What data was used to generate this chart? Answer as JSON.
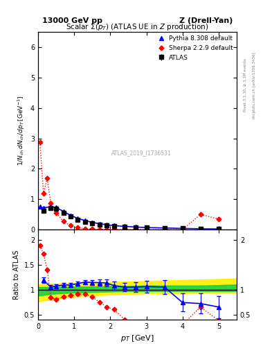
{
  "title_left": "13000 GeV pp",
  "title_right": "Z (Drell-Yan)",
  "main_title": "Scalar Σ(p_{T}) (ATLAS UE in Z production)",
  "ylabel_main": "1/N_{ch} dN_{ch}/dp_{T} [GeV⁻¹]",
  "ylabel_ratio": "Ratio to ATLAS",
  "xlabel": "p_{T} [GeV]",
  "right_label": "Rivet 3.1.10, ≥ 3.1M events",
  "right_label2": "mcplots.cern.ch [arXiv:1306.3436]",
  "watermark": "ATLAS_2019_I1736531",
  "atlas_x": [
    0.15,
    0.35,
    0.5,
    0.7,
    0.9,
    1.1,
    1.3,
    1.5,
    1.7,
    1.9,
    2.1,
    2.4,
    2.7,
    3.0,
    3.5,
    4.0,
    4.5,
    5.0
  ],
  "atlas_y": [
    0.62,
    0.72,
    0.68,
    0.55,
    0.43,
    0.33,
    0.26,
    0.21,
    0.17,
    0.14,
    0.12,
    0.1,
    0.08,
    0.07,
    0.055,
    0.04,
    0.03,
    0.025
  ],
  "atlas_yerr": [
    0.04,
    0.04,
    0.04,
    0.03,
    0.02,
    0.02,
    0.015,
    0.012,
    0.01,
    0.009,
    0.008,
    0.007,
    0.006,
    0.005,
    0.004,
    0.003,
    0.003,
    0.003
  ],
  "pythia_x": [
    0.05,
    0.15,
    0.35,
    0.5,
    0.7,
    0.9,
    1.1,
    1.3,
    1.5,
    1.7,
    1.9,
    2.1,
    2.4,
    2.7,
    3.0,
    3.5,
    4.0,
    4.5,
    5.0
  ],
  "pythia_y": [
    0.75,
    0.72,
    0.75,
    0.73,
    0.6,
    0.47,
    0.37,
    0.3,
    0.24,
    0.195,
    0.16,
    0.13,
    0.108,
    0.085,
    0.07,
    0.055,
    0.04,
    0.03,
    0.022
  ],
  "sherpa_x": [
    0.05,
    0.15,
    0.25,
    0.35,
    0.5,
    0.7,
    0.9,
    1.1,
    1.3,
    1.5,
    1.7,
    1.9,
    2.1,
    2.4,
    2.7,
    3.0,
    3.5,
    4.0,
    4.5,
    5.0
  ],
  "sherpa_y": [
    2.87,
    1.18,
    1.7,
    0.88,
    0.55,
    0.27,
    0.13,
    0.065,
    0.035,
    0.02,
    0.012,
    0.008,
    0.006,
    0.004,
    0.003,
    0.002,
    0.002,
    0.001,
    0.5,
    0.35
  ],
  "pythia_ratio_x": [
    0.15,
    0.35,
    0.5,
    0.7,
    0.9,
    1.1,
    1.3,
    1.5,
    1.7,
    1.9,
    2.1,
    2.4,
    2.7,
    3.0,
    3.5,
    4.0,
    4.5,
    5.0
  ],
  "pythia_ratio_y": [
    1.19,
    1.05,
    1.07,
    1.09,
    1.09,
    1.12,
    1.15,
    1.14,
    1.14,
    1.13,
    1.08,
    1.05,
    1.05,
    1.06,
    1.05,
    0.74,
    0.72,
    0.65
  ],
  "pythia_ratio_yerr": [
    0.06,
    0.04,
    0.04,
    0.04,
    0.04,
    0.04,
    0.04,
    0.05,
    0.06,
    0.07,
    0.08,
    0.09,
    0.1,
    0.12,
    0.14,
    0.18,
    0.2,
    0.22
  ],
  "sherpa_ratio_x": [
    0.05,
    0.15,
    0.25,
    0.35,
    0.5,
    0.7,
    0.9,
    1.1,
    1.3,
    1.5,
    1.7,
    1.9,
    2.1,
    2.4,
    2.7,
    3.0,
    3.5,
    4.0,
    4.5,
    5.0
  ],
  "sherpa_ratio_y": [
    1.88,
    1.72,
    1.4,
    0.84,
    0.8,
    0.85,
    0.88,
    0.91,
    0.91,
    0.85,
    0.75,
    0.65,
    0.6,
    0.4,
    0.3,
    0.3,
    0.3,
    0.3,
    0.65,
    0.38
  ],
  "green_band_x": [
    0.0,
    0.5,
    1.0,
    1.5,
    2.0,
    2.5,
    3.0,
    3.5,
    4.0,
    4.5,
    5.5
  ],
  "green_band_low": [
    0.88,
    0.92,
    0.94,
    0.95,
    0.96,
    0.97,
    0.97,
    0.97,
    0.97,
    0.97,
    0.97
  ],
  "green_band_high": [
    1.05,
    1.05,
    1.06,
    1.06,
    1.07,
    1.07,
    1.08,
    1.08,
    1.08,
    1.08,
    1.1
  ],
  "yellow_band_x": [
    0.0,
    0.5,
    1.0,
    1.5,
    2.0,
    2.5,
    3.0,
    3.5,
    4.0,
    4.5,
    5.5
  ],
  "yellow_band_low": [
    0.76,
    0.82,
    0.86,
    0.88,
    0.9,
    0.91,
    0.92,
    0.92,
    0.92,
    0.93,
    0.93
  ],
  "yellow_band_high": [
    1.1,
    1.12,
    1.13,
    1.14,
    1.15,
    1.16,
    1.17,
    1.18,
    1.19,
    1.2,
    1.22
  ],
  "xlim": [
    0,
    5.5
  ],
  "ylim_main": [
    0,
    6.5
  ],
  "ylim_ratio": [
    0.4,
    2.2
  ],
  "color_atlas": "black",
  "color_pythia": "blue",
  "color_sherpa": "red",
  "color_green": "#00cc44",
  "color_yellow": "#ffee00"
}
